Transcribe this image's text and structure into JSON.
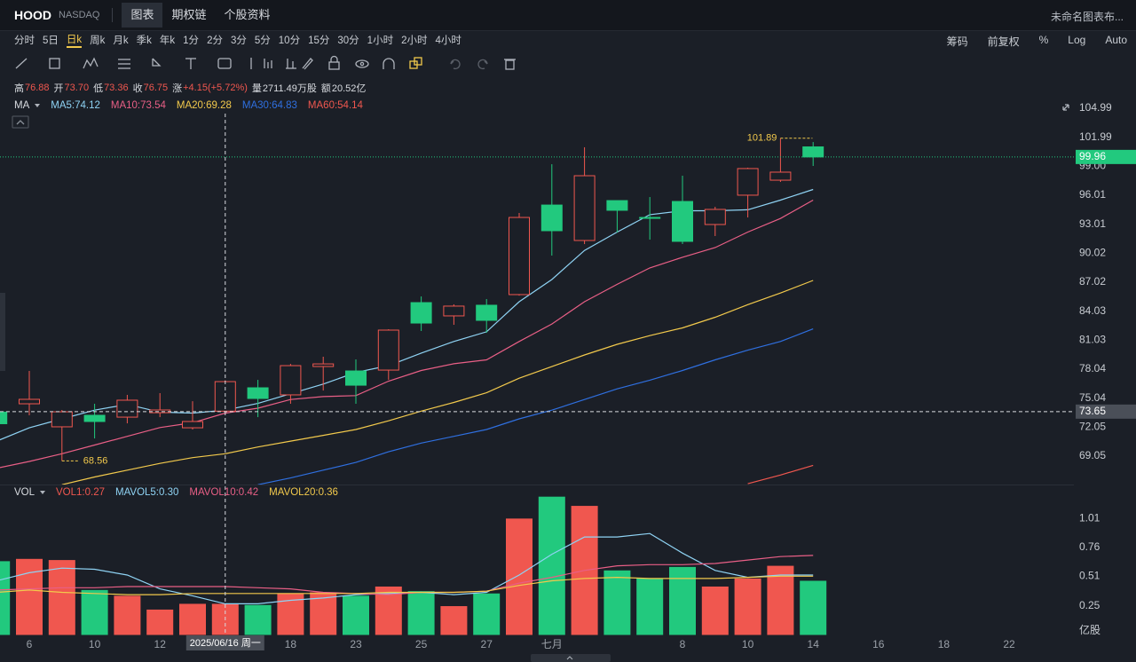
{
  "header": {
    "symbol": "HOOD",
    "exchange": "NASDAQ",
    "tabs": [
      "图表",
      "期权链",
      "个股资料"
    ],
    "layout_name": "未命名图表布..."
  },
  "periods": [
    "分时",
    "5日",
    "日k",
    "周k",
    "月k",
    "季k",
    "年k",
    "1分",
    "2分",
    "3分",
    "5分",
    "10分",
    "15分",
    "30分",
    "1小时",
    "2小时",
    "4小时"
  ],
  "options": [
    "筹码",
    "前复权",
    "%",
    "Log",
    "Auto"
  ],
  "info": [
    {
      "label": "高",
      "value": "76.88",
      "color": "#f0574f"
    },
    {
      "label": "开",
      "value": "73.70",
      "color": "#f0574f"
    },
    {
      "label": "低",
      "value": "73.36",
      "color": "#f0574f"
    },
    {
      "label": "收",
      "value": "76.75",
      "color": "#f0574f"
    },
    {
      "label": "涨",
      "value": "+4.15(+5.72%)",
      "color": "#f0574f"
    },
    {
      "label": "量",
      "value": "2711.49万股",
      "color": "#d8dbe0"
    },
    {
      "label": "额",
      "value": "20.52亿",
      "color": "#d8dbe0"
    }
  ],
  "chart_data": {
    "type": "candlestick",
    "up_color": "#f0574f",
    "down_color": "#22c97e",
    "categories": [
      null,
      "6",
      null,
      "10",
      null,
      "12",
      null,
      null,
      null,
      "18",
      null,
      "23",
      null,
      "25",
      null,
      "27",
      null,
      "七月",
      null,
      null,
      null,
      "8",
      null,
      "10",
      null,
      "14",
      null,
      "16",
      null,
      "18",
      null,
      "22"
    ],
    "open": [
      73.6,
      74.46,
      72.08,
      73.27,
      73.08,
      73.54,
      71.98,
      73.7,
      76.11,
      75.38,
      78.31,
      77.85,
      77.94,
      84.91,
      83.54,
      84.64,
      85.74,
      94.99,
      91.33,
      95.45,
      93.71,
      95.36,
      92.98,
      96.01,
      97.56,
      101.0,
      null,
      null,
      null,
      null,
      null,
      null
    ],
    "high": [
      73.8,
      77.85,
      73.82,
      74.46,
      75.38,
      75.56,
      74.73,
      76.88,
      76.93,
      78.58,
      79.32,
      79.04,
      82.16,
      85.55,
      84.73,
      85.28,
      94.17,
      99.21,
      100.96,
      95.45,
      95.82,
      98.02,
      94.81,
      98.85,
      101.89,
      101.5,
      null,
      null,
      null,
      null,
      null,
      null
    ],
    "low": [
      72.3,
      73.27,
      68.56,
      70.88,
      72.44,
      73.08,
      71.8,
      73.36,
      73.08,
      74.46,
      75.83,
      74.46,
      76.93,
      81.98,
      82.62,
      81.79,
      85.64,
      89.77,
      90.96,
      92.15,
      91.42,
      90.96,
      91.79,
      93.71,
      97.38,
      99.03,
      null,
      null,
      null,
      null,
      null,
      null
    ],
    "close": [
      72.4,
      74.92,
      73.63,
      72.63,
      74.83,
      73.82,
      72.63,
      76.75,
      75.01,
      78.4,
      78.58,
      76.38,
      82.07,
      82.8,
      84.55,
      83.08,
      93.71,
      92.34,
      98.02,
      94.45,
      93.62,
      91.24,
      94.54,
      98.76,
      98.39,
      99.96,
      null,
      null,
      null,
      null,
      null,
      null
    ],
    "ylim": [
      66.21,
      106.09
    ],
    "yticks": [
      104.99,
      101.99,
      {
        "value": 99,
        "label": "99.00"
      },
      96.01,
      93.01,
      90.02,
      87.02,
      84.03,
      81.03,
      78.04,
      75.04,
      72.05,
      69.05
    ],
    "grid": false,
    "last_price": 99.96,
    "crosshair_price": 73.65,
    "crosshair_date": "2025/06/16 周一",
    "ma_label": "MA",
    "ma": [
      {
        "name": "MA5:74.12",
        "color": "#8fd3f4",
        "values": [
          70.6,
          71.98,
          72.9,
          73.8,
          74.4,
          73.6,
          73.5,
          73.8,
          74.5,
          75.5,
          76.5,
          77.7,
          78.4,
          79.7,
          80.9,
          81.9,
          85.0,
          87.3,
          90.3,
          92.2,
          94.0,
          94.4,
          94.4,
          94.5,
          95.5,
          96.6,
          null,
          null,
          null,
          null,
          null,
          null
        ]
      },
      {
        "name": "MA10:73.54",
        "color": "#e95f86",
        "values": [
          67.8,
          68.5,
          69.3,
          70.2,
          71.1,
          72.0,
          72.5,
          73.5,
          74.0,
          74.9,
          75.2,
          75.3,
          76.8,
          77.9,
          78.6,
          79.0,
          80.9,
          82.7,
          85.0,
          86.8,
          88.5,
          89.6,
          90.6,
          92.2,
          93.6,
          95.5,
          null,
          null,
          null,
          null,
          null,
          null
        ]
      },
      {
        "name": "MA20:69.28",
        "color": "#f2c94c",
        "values": [
          null,
          null,
          66.1,
          66.9,
          67.6,
          68.3,
          68.9,
          69.3,
          70.0,
          70.6,
          71.2,
          71.8,
          72.7,
          73.7,
          74.6,
          75.6,
          77.1,
          78.3,
          79.5,
          80.6,
          81.5,
          82.3,
          83.4,
          84.7,
          85.9,
          87.2,
          null,
          null,
          null,
          null,
          null,
          null
        ]
      },
      {
        "name": "MA30:64.83",
        "color": "#2f6fdf",
        "values": [
          null,
          null,
          null,
          null,
          null,
          null,
          null,
          null,
          66.1,
          66.8,
          67.6,
          68.4,
          69.5,
          70.4,
          71.1,
          71.8,
          72.9,
          73.8,
          74.9,
          76.0,
          76.9,
          77.9,
          79.0,
          80.0,
          80.9,
          82.2,
          null,
          null,
          null,
          null,
          null,
          null
        ]
      },
      {
        "name": "MA60:54.14",
        "color": "#f0574f",
        "values": [
          null,
          null,
          null,
          null,
          null,
          null,
          null,
          null,
          null,
          null,
          null,
          null,
          null,
          null,
          null,
          null,
          null,
          null,
          null,
          null,
          null,
          null,
          null,
          66.2,
          67.1,
          68.1,
          null,
          null,
          null,
          null,
          null,
          null
        ]
      }
    ],
    "volume": {
      "label": "VOL",
      "vol_legend": "VOL1:0.27",
      "vol_legend_color": "#f0574f",
      "unit": "亿股",
      "values": [
        0.64,
        0.66,
        0.65,
        0.39,
        0.34,
        0.22,
        0.27,
        0.27,
        0.26,
        0.36,
        0.37,
        0.34,
        0.42,
        0.38,
        0.25,
        0.36,
        1.01,
        1.2,
        1.12,
        0.56,
        0.49,
        0.59,
        0.42,
        0.49,
        0.6,
        0.47,
        null,
        null,
        null,
        null,
        null,
        null
      ],
      "ylim": [
        0,
        1.29
      ],
      "yticks": [
        1.01,
        0.76,
        0.51,
        0.25
      ],
      "ma": [
        {
          "name": "MAVOL5:0.30",
          "color": "#8fd3f4",
          "values": [
            0.47,
            0.54,
            0.58,
            0.57,
            0.52,
            0.4,
            0.34,
            0.27,
            0.27,
            0.3,
            0.32,
            0.35,
            0.36,
            0.37,
            0.35,
            0.37,
            0.52,
            0.7,
            0.85,
            0.85,
            0.88,
            0.71,
            0.56,
            0.5,
            0.52,
            0.52,
            null,
            null,
            null,
            null,
            null,
            null
          ]
        },
        {
          "name": "MAVOL10:0.42",
          "color": "#e95f86",
          "values": [
            0.39,
            0.4,
            0.41,
            0.41,
            0.42,
            0.42,
            0.42,
            0.42,
            0.41,
            0.4,
            0.37,
            0.36,
            0.35,
            0.37,
            0.37,
            0.38,
            0.45,
            0.5,
            0.56,
            0.6,
            0.61,
            0.61,
            0.62,
            0.65,
            0.68,
            0.69,
            null,
            null,
            null,
            null,
            null,
            null
          ]
        },
        {
          "name": "MAVOL20:0.36",
          "color": "#f2c94c",
          "values": [
            0.37,
            0.39,
            0.37,
            0.36,
            0.35,
            0.35,
            0.36,
            0.36,
            0.36,
            0.36,
            0.36,
            0.36,
            0.37,
            0.37,
            0.37,
            0.38,
            0.43,
            0.47,
            0.49,
            0.5,
            0.49,
            0.49,
            0.49,
            0.5,
            0.51,
            0.51,
            null,
            null,
            null,
            null,
            null,
            null
          ]
        }
      ]
    }
  }
}
